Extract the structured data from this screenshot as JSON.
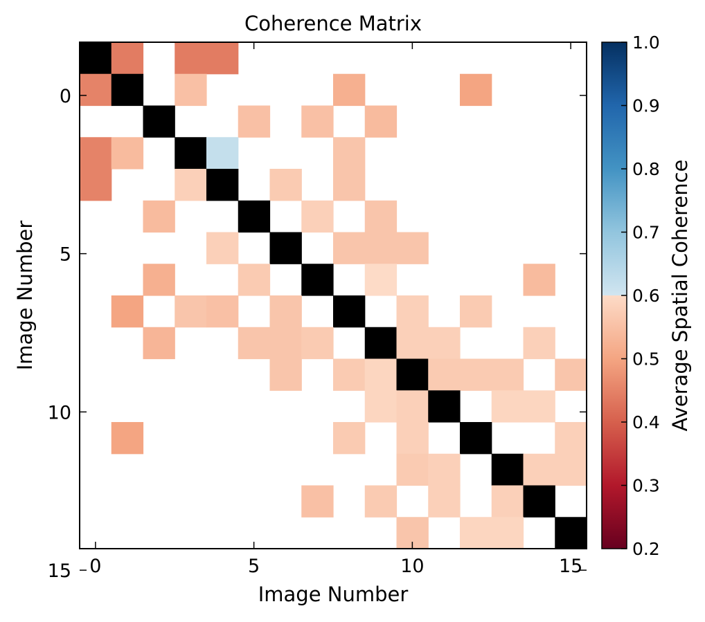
{
  "chart_data": {
    "type": "heatmap",
    "title": "Coherence Matrix",
    "xlabel": "Image Number",
    "ylabel": "Image Number",
    "x_ticks": [
      0,
      5,
      10,
      15
    ],
    "y_ticks": [
      0,
      5,
      10,
      15
    ],
    "size": 16,
    "diagonal": "black",
    "masked": "white",
    "colorbar": {
      "label": "Average Spatial Coherence",
      "range": [
        0.2,
        1.0
      ],
      "ticks": [
        "0.2",
        "0.3",
        "0.4",
        "0.5",
        "0.6",
        "0.7",
        "0.8",
        "0.9",
        "1.0"
      ],
      "colormap": "RdBu",
      "mask_threshold": 0.7
    },
    "matrix": [
      [
        null,
        0.44,
        null,
        0.44,
        0.44,
        null,
        null,
        null,
        null,
        null,
        null,
        null,
        null,
        null,
        null,
        null
      ],
      [
        0.45,
        null,
        null,
        0.55,
        null,
        null,
        null,
        null,
        0.52,
        null,
        null,
        null,
        0.5,
        null,
        null,
        null
      ],
      [
        null,
        null,
        null,
        null,
        null,
        0.55,
        null,
        0.55,
        null,
        0.54,
        null,
        null,
        null,
        null,
        null,
        null
      ],
      [
        0.45,
        0.54,
        null,
        null,
        0.62,
        null,
        null,
        null,
        0.56,
        null,
        null,
        null,
        null,
        null,
        null,
        null
      ],
      [
        0.45,
        null,
        null,
        0.58,
        null,
        null,
        0.57,
        null,
        0.56,
        null,
        null,
        null,
        null,
        null,
        null,
        null
      ],
      [
        null,
        null,
        0.54,
        null,
        null,
        null,
        null,
        0.58,
        null,
        0.56,
        null,
        null,
        null,
        null,
        null,
        null
      ],
      [
        null,
        null,
        null,
        null,
        0.58,
        null,
        null,
        null,
        0.56,
        0.56,
        0.56,
        null,
        null,
        null,
        null,
        null
      ],
      [
        null,
        null,
        0.52,
        null,
        null,
        0.57,
        null,
        null,
        null,
        0.6,
        null,
        null,
        null,
        null,
        0.54,
        null
      ],
      [
        null,
        0.5,
        null,
        0.56,
        0.55,
        null,
        0.56,
        null,
        null,
        null,
        0.58,
        null,
        0.57,
        null,
        null,
        null
      ],
      [
        null,
        null,
        0.53,
        null,
        null,
        0.56,
        0.56,
        0.57,
        null,
        null,
        0.58,
        0.58,
        null,
        null,
        0.58,
        null
      ],
      [
        null,
        null,
        null,
        null,
        null,
        null,
        0.56,
        null,
        0.57,
        0.59,
        null,
        0.57,
        0.57,
        0.57,
        null,
        0.56
      ],
      [
        null,
        null,
        null,
        null,
        null,
        null,
        null,
        null,
        null,
        0.59,
        0.58,
        null,
        null,
        0.59,
        0.59,
        null
      ],
      [
        null,
        0.5,
        null,
        null,
        null,
        null,
        null,
        null,
        0.57,
        null,
        0.58,
        null,
        null,
        null,
        null,
        0.58
      ],
      [
        null,
        null,
        null,
        null,
        null,
        null,
        null,
        null,
        null,
        null,
        0.57,
        0.58,
        null,
        null,
        0.58,
        0.58
      ],
      [
        null,
        null,
        null,
        null,
        null,
        null,
        null,
        0.55,
        null,
        0.57,
        null,
        0.58,
        null,
        0.58,
        null,
        null
      ],
      [
        null,
        null,
        null,
        null,
        null,
        null,
        null,
        null,
        null,
        null,
        0.56,
        null,
        0.59,
        0.59,
        null,
        null
      ]
    ]
  }
}
